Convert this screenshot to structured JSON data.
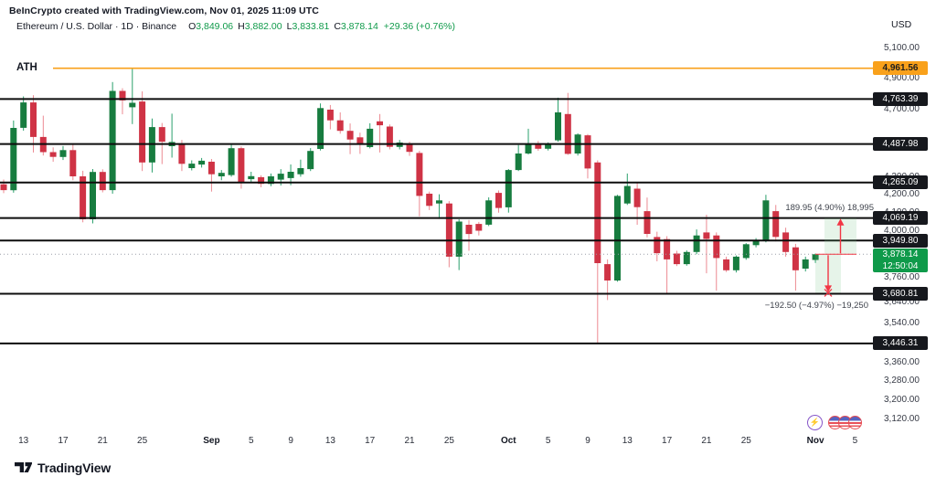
{
  "header": {
    "byline": "BeInCrypto created with TradingView.com, Nov 01, 2025 11:09 UTC",
    "symbol_title": "Ethereum / U.S. Dollar · 1D · Binance",
    "ohlc": {
      "o_label": "O",
      "o_value": "3,849.06",
      "h_label": "H",
      "h_value": "3,882.00",
      "l_label": "L",
      "l_value": "3,833.81",
      "c_label": "C",
      "c_value": "3,878.14",
      "change": "+29.36 (+0.76%)"
    }
  },
  "price_scale": {
    "currency": "USD",
    "plain_ticks": [
      {
        "label": "5,100.00",
        "price": 5100
      },
      {
        "label": "4,900.00",
        "price": 4900
      },
      {
        "label": "4,700.00",
        "price": 4700
      },
      {
        "label": "4,300.00",
        "price": 4300
      },
      {
        "label": "4,200.00",
        "price": 4200
      },
      {
        "label": "4,100.00",
        "price": 4100
      },
      {
        "label": "4,000.00",
        "price": 4000
      },
      {
        "label": "3,760.00",
        "price": 3760
      },
      {
        "label": "3,640.00",
        "price": 3640
      },
      {
        "label": "3,540.00",
        "price": 3540
      },
      {
        "label": "3,360.00",
        "price": 3360
      },
      {
        "label": "3,280.00",
        "price": 3280
      },
      {
        "label": "3,200.00",
        "price": 3200
      },
      {
        "label": "3,120.00",
        "price": 3120
      }
    ],
    "level_badges": [
      {
        "label": "4,763.39",
        "price": 4763.39
      },
      {
        "label": "4,487.98",
        "price": 4487.98
      },
      {
        "label": "4,265.09",
        "price": 4265.09
      },
      {
        "label": "4,069.19",
        "price": 4069.19
      },
      {
        "label": "3,949.80",
        "price": 3949.8
      },
      {
        "label": "3,680.81",
        "price": 3680.81
      },
      {
        "label": "3,446.31",
        "price": 3446.31
      }
    ],
    "ath_badge": {
      "label": "4,961.56",
      "price": 4961.56
    },
    "last_badge": {
      "label": "3,878.14",
      "countdown": "12:50:04",
      "price": 3878.14
    }
  },
  "time_axis": {
    "ticks": [
      {
        "label": "13",
        "day": 2,
        "bold": false
      },
      {
        "label": "17",
        "day": 6,
        "bold": false
      },
      {
        "label": "21",
        "day": 10,
        "bold": false
      },
      {
        "label": "25",
        "day": 14,
        "bold": false
      },
      {
        "label": "Sep",
        "day": 21,
        "bold": true
      },
      {
        "label": "5",
        "day": 25,
        "bold": false
      },
      {
        "label": "9",
        "day": 29,
        "bold": false
      },
      {
        "label": "13",
        "day": 33,
        "bold": false
      },
      {
        "label": "17",
        "day": 37,
        "bold": false
      },
      {
        "label": "21",
        "day": 41,
        "bold": false
      },
      {
        "label": "25",
        "day": 45,
        "bold": false
      },
      {
        "label": "Oct",
        "day": 51,
        "bold": true
      },
      {
        "label": "5",
        "day": 55,
        "bold": false
      },
      {
        "label": "9",
        "day": 59,
        "bold": false
      },
      {
        "label": "13",
        "day": 63,
        "bold": false
      },
      {
        "label": "17",
        "day": 67,
        "bold": false
      },
      {
        "label": "21",
        "day": 71,
        "bold": false
      },
      {
        "label": "25",
        "day": 75,
        "bold": false
      },
      {
        "label": "Nov",
        "day": 82,
        "bold": true
      },
      {
        "label": "5",
        "day": 86,
        "bold": false
      }
    ]
  },
  "chart_data": {
    "type": "candlestick",
    "title": "Ethereum / U.S. Dollar, 1D, Binance",
    "scale": "logarithmic",
    "visible_price_range": [
      3040,
      5160
    ],
    "ohlc_format": "[date, open, high, low, close]",
    "candles": [
      [
        "Aug 11",
        4255,
        4282,
        4205,
        4222
      ],
      [
        "Aug 12",
        4222,
        4630,
        4208,
        4585
      ],
      [
        "Aug 13",
        4585,
        4780,
        4568,
        4742
      ],
      [
        "Aug 14",
        4742,
        4788,
        4438,
        4530
      ],
      [
        "Aug 15",
        4530,
        4660,
        4420,
        4440
      ],
      [
        "Aug 16",
        4440,
        4468,
        4384,
        4412
      ],
      [
        "Aug 17",
        4412,
        4476,
        4394,
        4452
      ],
      [
        "Aug 18",
        4452,
        4486,
        4278,
        4300
      ],
      [
        "Aug 19",
        4300,
        4332,
        4046,
        4062
      ],
      [
        "Aug 20",
        4062,
        4342,
        4040,
        4325
      ],
      [
        "Aug 21",
        4325,
        4340,
        4210,
        4222
      ],
      [
        "Aug 22",
        4222,
        4872,
        4202,
        4815
      ],
      [
        "Aug 23",
        4815,
        4832,
        4668,
        4755
      ],
      [
        "Aug 24",
        4712,
        4960,
        4608,
        4740
      ],
      [
        "Aug 25",
        4748,
        4812,
        4330,
        4380
      ],
      [
        "Aug 26",
        4380,
        4642,
        4322,
        4590
      ],
      [
        "Aug 27",
        4590,
        4615,
        4370,
        4502
      ],
      [
        "Aug 28",
        4475,
        4672,
        4408,
        4500
      ],
      [
        "Aug 29",
        4490,
        4512,
        4330,
        4372
      ],
      [
        "Aug 30",
        4347,
        4392,
        4334,
        4373
      ],
      [
        "Aug 31",
        4368,
        4406,
        4350,
        4390
      ],
      [
        "Sep 1",
        4384,
        4400,
        4214,
        4312
      ],
      [
        "Sep 2",
        4300,
        4336,
        4278,
        4320
      ],
      [
        "Sep 3",
        4307,
        4486,
        4298,
        4463
      ],
      [
        "Sep 4",
        4463,
        4474,
        4230,
        4266
      ],
      [
        "Sep 5",
        4284,
        4326,
        4264,
        4301
      ],
      [
        "Sep 6",
        4295,
        4306,
        4238,
        4257
      ],
      [
        "Sep 7",
        4257,
        4316,
        4244,
        4300
      ],
      [
        "Sep 8",
        4281,
        4341,
        4248,
        4315
      ],
      [
        "Sep 9",
        4290,
        4368,
        4250,
        4326
      ],
      [
        "Sep 10",
        4312,
        4396,
        4298,
        4347
      ],
      [
        "Sep 11",
        4341,
        4464,
        4330,
        4447
      ],
      [
        "Sep 12",
        4459,
        4736,
        4450,
        4707
      ],
      [
        "Sep 13",
        4697,
        4726,
        4576,
        4631
      ],
      [
        "Sep 14",
        4631,
        4680,
        4550,
        4567
      ],
      [
        "Sep 15",
        4567,
        4612,
        4428,
        4515
      ],
      [
        "Sep 16",
        4528,
        4556,
        4430,
        4492
      ],
      [
        "Sep 17",
        4470,
        4613,
        4462,
        4580
      ],
      [
        "Sep 18",
        4625,
        4670,
        4438,
        4601
      ],
      [
        "Sep 19",
        4593,
        4606,
        4456,
        4471
      ],
      [
        "Sep 20",
        4471,
        4512,
        4456,
        4497
      ],
      [
        "Sep 21",
        4484,
        4502,
        4418,
        4442
      ],
      [
        "Sep 22",
        4435,
        4448,
        4078,
        4190
      ],
      [
        "Sep 23",
        4202,
        4214,
        4112,
        4135
      ],
      [
        "Sep 24",
        4148,
        4199,
        4064,
        4165
      ],
      [
        "Sep 25",
        4148,
        4161,
        3812,
        3866
      ],
      [
        "Sep 26",
        3866,
        4062,
        3798,
        4050
      ],
      [
        "Sep 27",
        4033,
        4058,
        3896,
        3984
      ],
      [
        "Sep 28",
        4037,
        4048,
        3976,
        4001
      ],
      [
        "Sep 29",
        4033,
        4182,
        4026,
        4165
      ],
      [
        "Sep 30",
        4207,
        4220,
        4098,
        4124
      ],
      [
        "Oct 1",
        4127,
        4342,
        4098,
        4336
      ],
      [
        "Oct 2",
        4336,
        4482,
        4330,
        4432
      ],
      [
        "Oct 3",
        4432,
        4580,
        4426,
        4492
      ],
      [
        "Oct 4",
        4492,
        4506,
        4448,
        4460
      ],
      [
        "Oct 5",
        4460,
        4498,
        4450,
        4490
      ],
      [
        "Oct 6",
        4510,
        4772,
        4502,
        4680
      ],
      [
        "Oct 7",
        4670,
        4802,
        4424,
        4430
      ],
      [
        "Oct 8",
        4432,
        4552,
        4420,
        4545
      ],
      [
        "Oct 9",
        4540,
        4548,
        4288,
        4345
      ],
      [
        "Oct 10",
        4380,
        4392,
        3446,
        3833
      ],
      [
        "Oct 11",
        3828,
        3852,
        3650,
        3746
      ],
      [
        "Oct 12",
        3746,
        4196,
        3740,
        4190
      ],
      [
        "Oct 13",
        4148,
        4316,
        4140,
        4245
      ],
      [
        "Oct 14",
        4230,
        4266,
        4033,
        4128
      ],
      [
        "Oct 15",
        4106,
        4181,
        3966,
        3984
      ],
      [
        "Oct 16",
        3968,
        3996,
        3842,
        3884
      ],
      [
        "Oct 17",
        3957,
        3972,
        3681,
        3852
      ],
      [
        "Oct 18",
        3882,
        3896,
        3818,
        3828
      ],
      [
        "Oct 19",
        3828,
        3898,
        3820,
        3890
      ],
      [
        "Oct 20",
        3890,
        4008,
        3878,
        3976
      ],
      [
        "Oct 21",
        3992,
        4087,
        3782,
        3958
      ],
      [
        "Oct 22",
        3976,
        3992,
        3696,
        3859
      ],
      [
        "Oct 23",
        3852,
        3866,
        3788,
        3797
      ],
      [
        "Oct 24",
        3797,
        3872,
        3786,
        3866
      ],
      [
        "Oct 25",
        3859,
        3936,
        3850,
        3930
      ],
      [
        "Oct 26",
        3925,
        3962,
        3914,
        3950
      ],
      [
        "Oct 27",
        3950,
        4196,
        3940,
        4165
      ],
      [
        "Oct 28",
        4106,
        4140,
        3945,
        3968
      ],
      [
        "Oct 29",
        3992,
        4017,
        3866,
        3890
      ],
      [
        "Oct 30",
        3914,
        3932,
        3696,
        3797
      ],
      [
        "Oct 31",
        3805,
        3866,
        3791,
        3852
      ],
      [
        "Nov 1",
        3849.06,
        3882.0,
        3833.81,
        3878.14
      ]
    ],
    "support_resistance_levels": [
      4763.39,
      4487.98,
      4265.09,
      4069.19,
      3949.8,
      3680.81,
      3446.31
    ],
    "ath": {
      "label": "ATH",
      "price": 4961.56
    },
    "last_price": 3878.14,
    "projections": [
      {
        "direction": "up",
        "label": "189.95 (4.90%) 18,995",
        "from_price": 3878.14,
        "to_price": 4068.09
      },
      {
        "direction": "down",
        "label": "−192.50 (−4.97%) −19,250",
        "from_price": 3878.14,
        "to_price": 3685.64
      }
    ]
  },
  "footer": {
    "brand": "TradingView"
  },
  "colors": {
    "up": "#177c3f",
    "up_wick": "#2aa06c",
    "down": "#cf3345",
    "down_wick": "#ec8a92",
    "level": "#0d0d0d",
    "ath": "#f9a11b",
    "last_line": "#9a9ea8",
    "accent_red": "#f23645",
    "projection_fill": "rgba(118,194,134,0.18)",
    "legend_green": "#0f9a4a",
    "badge_dark": "#16181d",
    "last_badge_green": "#0f9a4a"
  }
}
